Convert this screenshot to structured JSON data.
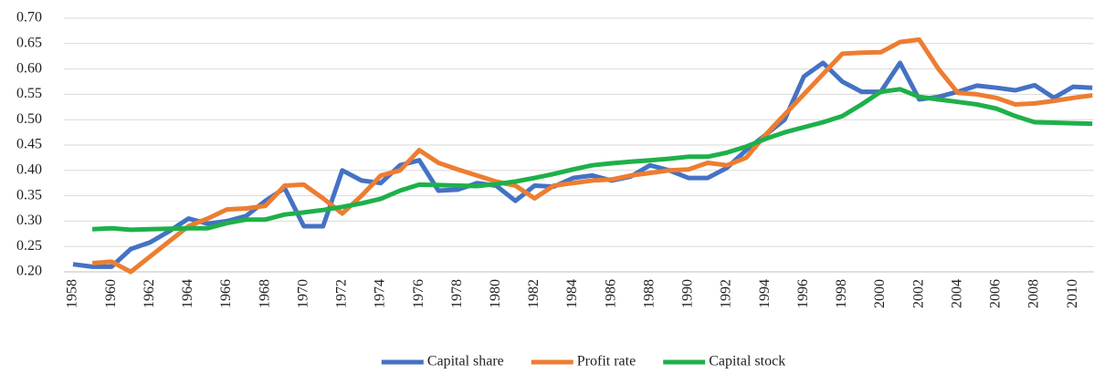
{
  "chart_data": {
    "type": "line",
    "categories": [
      "1958",
      null,
      "1960",
      null,
      "1962",
      null,
      "1964",
      null,
      "1966",
      null,
      "1968",
      null,
      "1970",
      null,
      "1972",
      null,
      "1974",
      null,
      "1976",
      null,
      "1978",
      null,
      "1980",
      null,
      "1982",
      null,
      "1984",
      null,
      "1986",
      null,
      "1988",
      null,
      "1990",
      null,
      "1992",
      null,
      "1994",
      null,
      "1996",
      null,
      "1998",
      null,
      "2000",
      null,
      "2002",
      null,
      "2004",
      null,
      "2006",
      null,
      "2008",
      null,
      "2010",
      null
    ],
    "series": [
      {
        "name": "Capital share",
        "color": "#4472c4",
        "values": [
          0.215,
          0.21,
          0.21,
          0.245,
          0.258,
          0.28,
          0.305,
          0.295,
          0.3,
          0.31,
          0.34,
          0.365,
          0.29,
          0.29,
          0.4,
          0.38,
          0.375,
          0.41,
          0.42,
          0.36,
          0.362,
          0.375,
          0.37,
          0.34,
          0.37,
          0.368,
          0.385,
          0.39,
          0.38,
          0.388,
          0.41,
          0.4,
          0.385,
          0.385,
          0.405,
          0.44,
          0.47,
          0.5,
          0.585,
          0.612,
          0.575,
          0.555,
          0.555,
          0.612,
          0.54,
          0.545,
          0.555,
          0.567,
          0.563,
          0.558,
          0.568,
          0.543,
          0.565,
          0.563
        ]
      },
      {
        "name": "Profit rate",
        "color": "#ed7d31",
        "values": [
          null,
          0.217,
          0.22,
          0.2,
          0.23,
          0.26,
          0.29,
          0.305,
          0.323,
          0.325,
          0.33,
          0.37,
          0.372,
          0.345,
          0.315,
          0.35,
          0.39,
          0.4,
          0.44,
          0.415,
          0.402,
          0.39,
          0.378,
          0.37,
          0.345,
          0.37,
          0.375,
          0.38,
          0.382,
          0.39,
          0.395,
          0.4,
          0.402,
          0.415,
          0.41,
          0.425,
          0.47,
          0.51,
          0.55,
          0.59,
          0.63,
          0.632,
          0.633,
          0.653,
          0.658,
          0.6,
          0.553,
          0.55,
          0.543,
          0.53,
          0.532,
          0.537,
          0.543,
          0.548
        ]
      },
      {
        "name": "Capital stock",
        "color": "#1eb04a",
        "values": [
          null,
          0.284,
          0.286,
          0.283,
          0.284,
          0.285,
          0.286,
          0.286,
          0.296,
          0.303,
          0.303,
          0.313,
          0.317,
          0.322,
          0.328,
          0.335,
          0.344,
          0.36,
          0.372,
          0.371,
          0.37,
          0.369,
          0.373,
          0.378,
          0.385,
          0.393,
          0.402,
          0.41,
          0.414,
          0.417,
          0.42,
          0.423,
          0.427,
          0.427,
          0.435,
          0.447,
          0.462,
          0.475,
          0.485,
          0.495,
          0.507,
          0.53,
          0.555,
          0.56,
          0.545,
          0.54,
          0.535,
          0.53,
          0.522,
          0.507,
          0.495,
          0.494,
          0.493,
          0.492
        ]
      }
    ],
    "ylim": [
      0.2,
      0.7
    ],
    "yticks": [
      {
        "value": 0.2,
        "label": "0.20"
      },
      {
        "value": 0.25,
        "label": "0.25"
      },
      {
        "value": 0.3,
        "label": "0.30"
      },
      {
        "value": 0.35,
        "label": "0.35"
      },
      {
        "value": 0.4,
        "label": "0.40"
      },
      {
        "value": 0.45,
        "label": "0.45"
      },
      {
        "value": 0.5,
        "label": "0.50"
      },
      {
        "value": 0.55,
        "label": "0.55"
      },
      {
        "value": 0.6,
        "label": "0.60"
      },
      {
        "value": 0.65,
        "label": "0.65"
      },
      {
        "value": 0.7,
        "label": "0.70"
      }
    ],
    "grid": true,
    "legend": "bottom"
  }
}
